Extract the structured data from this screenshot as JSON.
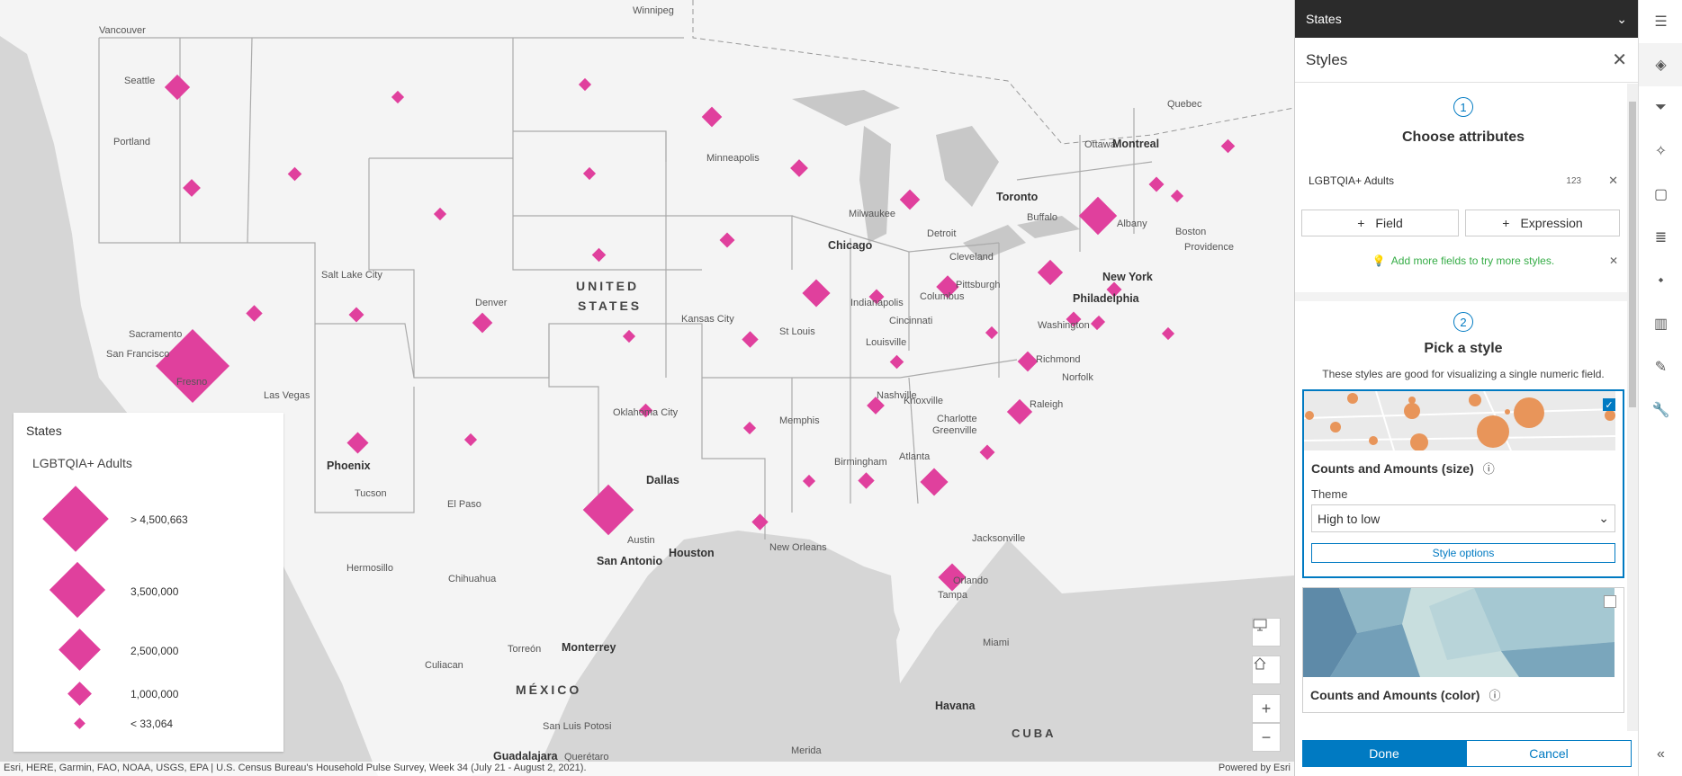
{
  "map": {
    "attribution_left": "Esri, HERE, Garmin, FAO, NOAA, USGS, EPA | U.S. Census Bureau's Household Pulse Survey, Week 34 (July 21 - August 2, 2021).",
    "attribution_right": "Powered by Esri",
    "country_us_1": "UNITED",
    "country_us_2": "STATES",
    "country_mx": "MÉXICO",
    "country_cuba": "CUBA",
    "symbol_color": "#e0409d",
    "cities": [
      {
        "name": "Vancouver",
        "major": false
      },
      {
        "name": "Winnipeg",
        "major": false
      },
      {
        "name": "Seattle",
        "major": false
      },
      {
        "name": "Portland",
        "major": false
      },
      {
        "name": "Quebec",
        "major": false
      },
      {
        "name": "Ottawa",
        "major": false
      },
      {
        "name": "Montreal",
        "major": true
      },
      {
        "name": "Minneapolis",
        "major": false
      },
      {
        "name": "Toronto",
        "major": true
      },
      {
        "name": "Milwaukee",
        "major": false
      },
      {
        "name": "Detroit",
        "major": false
      },
      {
        "name": "Buffalo",
        "major": false
      },
      {
        "name": "Albany",
        "major": false
      },
      {
        "name": "Boston",
        "major": false
      },
      {
        "name": "Providence",
        "major": false
      },
      {
        "name": "Chicago",
        "major": true
      },
      {
        "name": "Cleveland",
        "major": false
      },
      {
        "name": "Salt Lake City",
        "major": false
      },
      {
        "name": "Pittsburgh",
        "major": false
      },
      {
        "name": "New York",
        "major": true
      },
      {
        "name": "Denver",
        "major": false
      },
      {
        "name": "Indianapolis",
        "major": false
      },
      {
        "name": "Columbus",
        "major": false
      },
      {
        "name": "Philadelphia",
        "major": true
      },
      {
        "name": "Sacramento",
        "major": false
      },
      {
        "name": "Kansas City",
        "major": false
      },
      {
        "name": "Cincinnati",
        "major": false
      },
      {
        "name": "San Francisco",
        "major": false
      },
      {
        "name": "St Louis",
        "major": false
      },
      {
        "name": "Washington",
        "major": false
      },
      {
        "name": "Fresno",
        "major": false
      },
      {
        "name": "Louisville",
        "major": false
      },
      {
        "name": "Richmond",
        "major": false
      },
      {
        "name": "Norfolk",
        "major": false
      },
      {
        "name": "Las Vegas",
        "major": false
      },
      {
        "name": "Nashville",
        "major": false
      },
      {
        "name": "Knoxville",
        "major": false
      },
      {
        "name": "Raleigh",
        "major": false
      },
      {
        "name": "Oklahoma City",
        "major": false
      },
      {
        "name": "Charlotte",
        "major": false
      },
      {
        "name": "Memphis",
        "major": false
      },
      {
        "name": "Greenville",
        "major": false
      },
      {
        "name": "Phoenix",
        "major": true
      },
      {
        "name": "Birmingham",
        "major": false
      },
      {
        "name": "Atlanta",
        "major": false
      },
      {
        "name": "Dallas",
        "major": true
      },
      {
        "name": "Tucson",
        "major": false
      },
      {
        "name": "El Paso",
        "major": false
      },
      {
        "name": "Austin",
        "major": false
      },
      {
        "name": "Jacksonville",
        "major": false
      },
      {
        "name": "San Antonio",
        "major": true
      },
      {
        "name": "Houston",
        "major": true
      },
      {
        "name": "New Orleans",
        "major": false
      },
      {
        "name": "Hermosillo",
        "major": false
      },
      {
        "name": "Chihuahua",
        "major": false
      },
      {
        "name": "Orlando",
        "major": false
      },
      {
        "name": "Tampa",
        "major": false
      },
      {
        "name": "Miami",
        "major": false
      },
      {
        "name": "Torreón",
        "major": false
      },
      {
        "name": "Monterrey",
        "major": true
      },
      {
        "name": "Culiacan",
        "major": false
      },
      {
        "name": "Havana",
        "major": true
      },
      {
        "name": "San Luis Potosi",
        "major": false
      },
      {
        "name": "Guadalajara",
        "major": true
      },
      {
        "name": "Querétaro",
        "major": false
      },
      {
        "name": "Merida",
        "major": false
      }
    ]
  },
  "legend": {
    "title": "States",
    "field": "LGBTQIA+ Adults",
    "classes": [
      {
        "label": "> 4,500,663"
      },
      {
        "label": "3,500,000"
      },
      {
        "label": "2,500,000"
      },
      {
        "label": "1,000,000"
      },
      {
        "label": "< 33,064"
      }
    ]
  },
  "panel": {
    "header_title": "States",
    "styles_title": "Styles",
    "step1": {
      "number": "1",
      "title": "Choose attributes",
      "attribute": "LGBTQIA+ Adults",
      "attribute_type": "123",
      "field_button": "Field",
      "expression_button": "Expression",
      "hint": "Add more fields to try more styles."
    },
    "step2": {
      "number": "2",
      "title": "Pick a style",
      "description": "These styles are good for visualizing a single numeric field.",
      "card1_title": "Counts and Amounts (size)",
      "theme_label": "Theme",
      "theme_value": "High to low",
      "style_options": "Style options",
      "card2_title": "Counts and Amounts (color)"
    },
    "done": "Done",
    "cancel": "Cancel"
  }
}
